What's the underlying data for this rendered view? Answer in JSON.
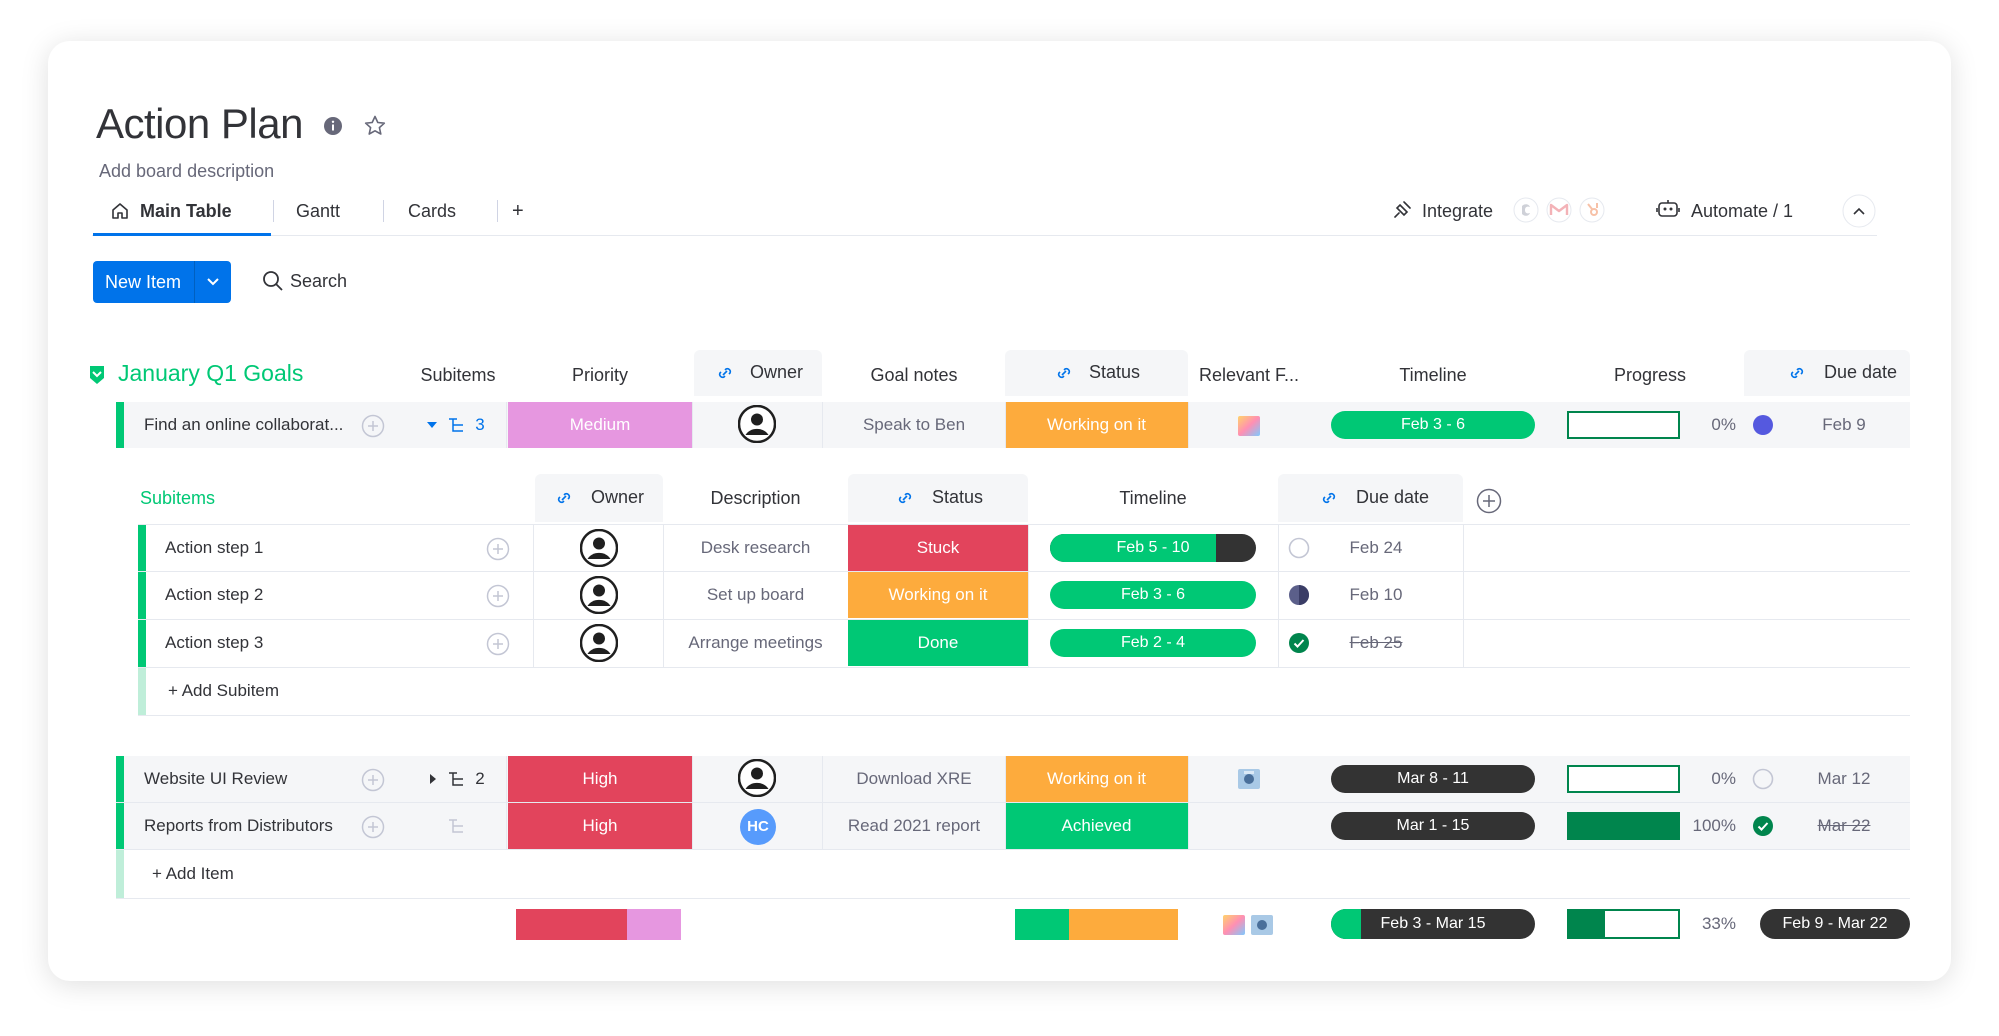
{
  "board": {
    "title": "Action Plan",
    "description": "Add board description"
  },
  "tabs": {
    "main": "Main Table",
    "gantt": "Gantt",
    "cards": "Cards",
    "add": "+"
  },
  "toolbar": {
    "integrate": "Integrate",
    "automate": "Automate / 1",
    "new_item": "New Item",
    "search": "Search"
  },
  "group": {
    "name": "January Q1 Goals",
    "color": "#00c875",
    "columns": {
      "subitems": "Subitems",
      "priority": "Priority",
      "owner": "Owner",
      "goal_notes": "Goal notes",
      "status": "Status",
      "relevant_files": "Relevant F...",
      "timeline": "Timeline",
      "progress": "Progress",
      "due_date": "Due date"
    },
    "items": [
      {
        "name": "Find an online collaborat...",
        "subitem_count": "3",
        "priority": "Medium",
        "priority_color": "#e697e0",
        "owner": "",
        "notes": "Speak to Ben",
        "status": "Working on it",
        "status_color": "#fdab3d",
        "timeline": "Feb 3 - 6",
        "progress_value": 0,
        "progress": "0%",
        "due": "Feb 9"
      },
      {
        "name": "Website UI Review",
        "subitem_count": "2",
        "priority": "High",
        "priority_color": "#e2445c",
        "owner": "",
        "notes": "Download XRE",
        "status": "Working on it",
        "status_color": "#fdab3d",
        "timeline": "Mar 8 - 11",
        "progress_value": 0,
        "progress": "0%",
        "due": "Mar 12"
      },
      {
        "name": "Reports from Distributors",
        "subitem_count": "",
        "priority": "High",
        "priority_color": "#e2445c",
        "owner": "HC",
        "notes": "Read 2021 report",
        "status": "Achieved",
        "status_color": "#00c875",
        "timeline": "Mar 1 - 15",
        "progress_value": 100,
        "progress": "100%",
        "due": "Mar 22"
      }
    ],
    "add_item": "+ Add Item"
  },
  "subitems": {
    "title": "Subitems",
    "columns": {
      "owner": "Owner",
      "description": "Description",
      "status": "Status",
      "timeline": "Timeline",
      "due_date": "Due date"
    },
    "rows": [
      {
        "name": "Action step 1",
        "description": "Desk research",
        "status": "Stuck",
        "status_color": "#e2445c",
        "timeline": "Feb 5 - 10",
        "due": "Feb 24"
      },
      {
        "name": "Action step 2",
        "description": "Set up board",
        "status": "Working on it",
        "status_color": "#fdab3d",
        "timeline": "Feb 3 - 6",
        "due": "Feb 10"
      },
      {
        "name": "Action step 3",
        "description": "Arrange meetings",
        "status": "Done",
        "status_color": "#00c875",
        "timeline": "Feb 2 - 4",
        "due": "Feb 25"
      }
    ],
    "add": "+ Add Subitem"
  },
  "summary": {
    "timeline": "Feb 3 - Mar 15",
    "progress": "33%",
    "progress_value": 33,
    "due": "Feb 9 - Mar 22"
  }
}
